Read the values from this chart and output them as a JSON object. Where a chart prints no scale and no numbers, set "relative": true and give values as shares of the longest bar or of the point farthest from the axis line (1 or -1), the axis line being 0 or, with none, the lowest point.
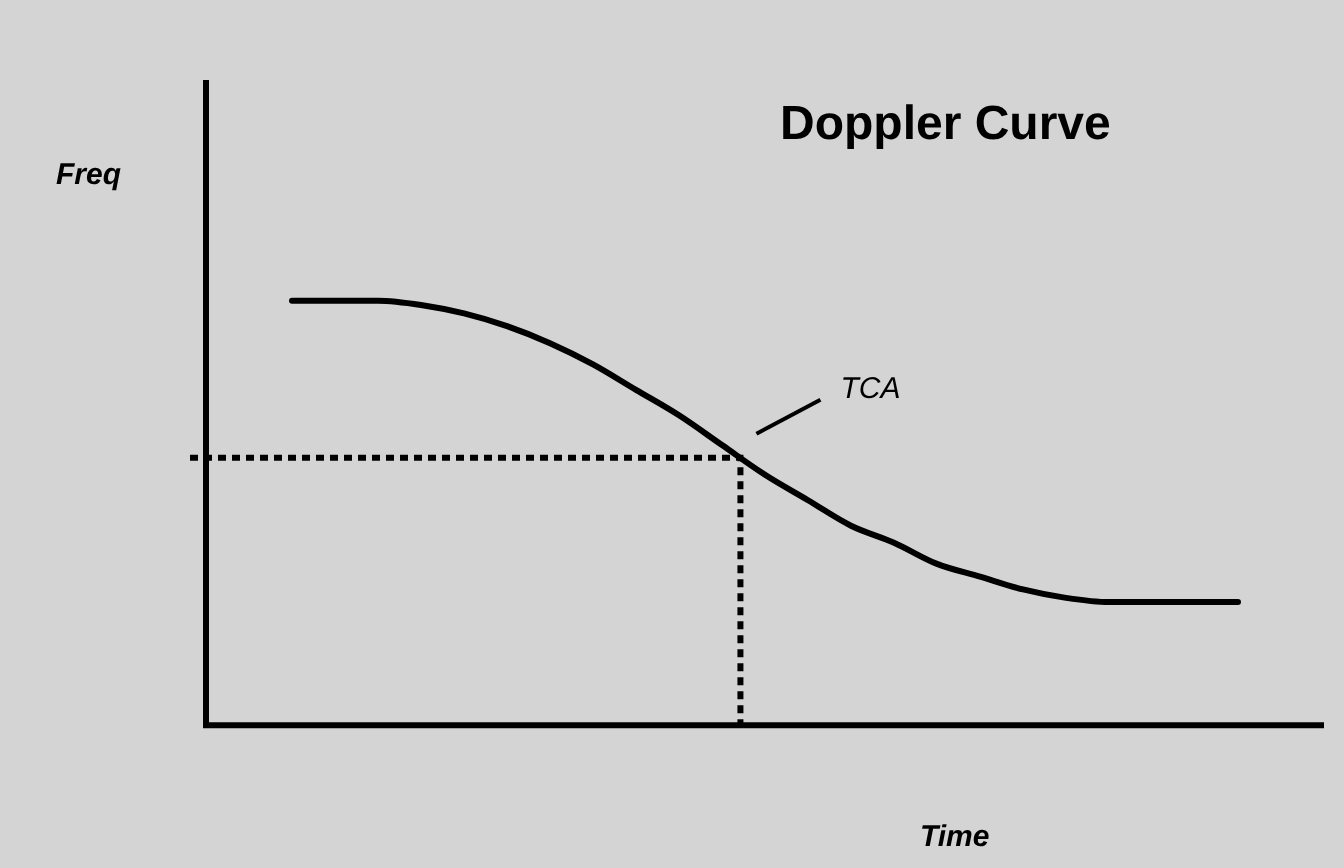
{
  "chart_data": {
    "type": "line",
    "title": "Doppler Curve",
    "xlabel": "Time",
    "ylabel": "Freq",
    "relative": true,
    "categories": [
      null,
      null,
      null,
      null,
      null,
      null,
      null,
      null,
      null,
      null,
      null,
      null,
      null,
      null,
      null,
      null,
      null,
      null,
      null,
      null,
      null,
      null,
      null,
      null,
      null,
      null,
      null
    ],
    "series": [
      {
        "color": "#000000",
        "values": [
          null,
          null,
          1.0,
          1.0,
          1.0,
          0.99,
          0.97,
          0.94,
          0.9,
          0.85,
          0.79,
          0.73,
          0.66,
          0.59,
          0.53,
          0.47,
          0.43,
          0.38,
          0.35,
          0.32,
          0.3,
          0.29,
          0.29,
          0.29,
          0.29,
          null,
          null
        ]
      }
    ],
    "ref_lines": [
      {
        "axis": "y",
        "value": 0.63,
        "label": "TCA",
        "line_style": "dotted",
        "color": "#000000"
      }
    ],
    "grid": false,
    "legend": false,
    "marker": "none",
    "line_style": "solid"
  }
}
